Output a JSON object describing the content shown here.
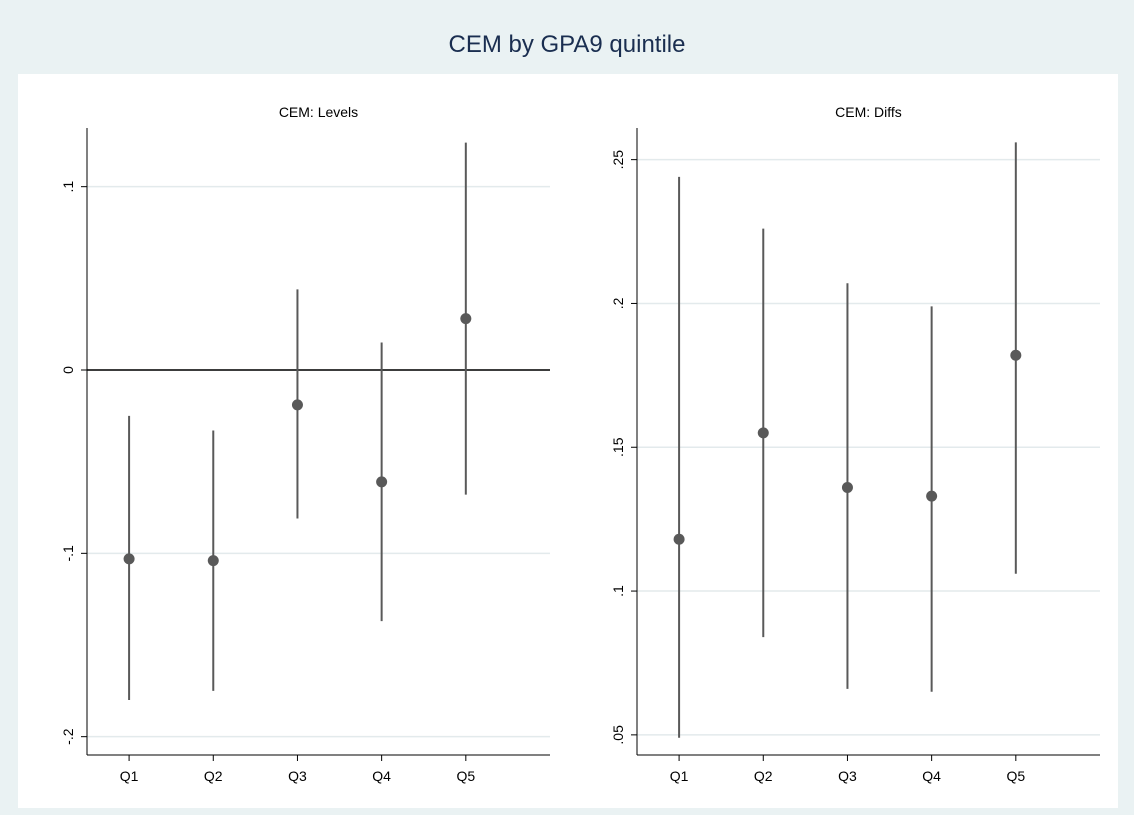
{
  "title": "CEM by GPA9 quintile",
  "chart_data": [
    {
      "type": "errorbar",
      "title": "CEM: Levels",
      "categories": [
        "Q1",
        "Q2",
        "Q3",
        "Q4",
        "Q5"
      ],
      "values": [
        -0.103,
        -0.104,
        -0.019,
        -0.061,
        0.028
      ],
      "lower": [
        -0.18,
        -0.175,
        -0.081,
        -0.137,
        -0.068
      ],
      "upper": [
        -0.025,
        -0.033,
        0.044,
        0.015,
        0.124
      ],
      "color": "#595959",
      "ylim": [
        -0.21,
        0.132
      ],
      "yticks": [
        {
          "value": -0.2,
          "label": "-.2"
        },
        {
          "value": -0.1,
          "label": "-.1"
        },
        0,
        {
          "value": 0.1,
          "label": ".1"
        }
      ],
      "yline": 0,
      "grid": true
    },
    {
      "type": "errorbar",
      "title": "CEM: Diffs",
      "categories": [
        "Q1",
        "Q2",
        "Q3",
        "Q4",
        "Q5"
      ],
      "values": [
        0.118,
        0.155,
        0.136,
        0.133,
        0.182
      ],
      "lower": [
        0.049,
        0.084,
        0.066,
        0.065,
        0.106
      ],
      "upper": [
        0.244,
        0.226,
        0.207,
        0.199,
        0.256
      ],
      "color": "#595959",
      "ylim": [
        0.043,
        0.261
      ],
      "yticks": [
        {
          "value": 0.05,
          "label": ".05"
        },
        {
          "value": 0.1,
          "label": ".1"
        },
        {
          "value": 0.15,
          "label": ".15"
        },
        {
          "value": 0.2,
          "label": ".2"
        },
        {
          "value": 0.25,
          "label": ".25"
        }
      ],
      "grid": true
    }
  ]
}
